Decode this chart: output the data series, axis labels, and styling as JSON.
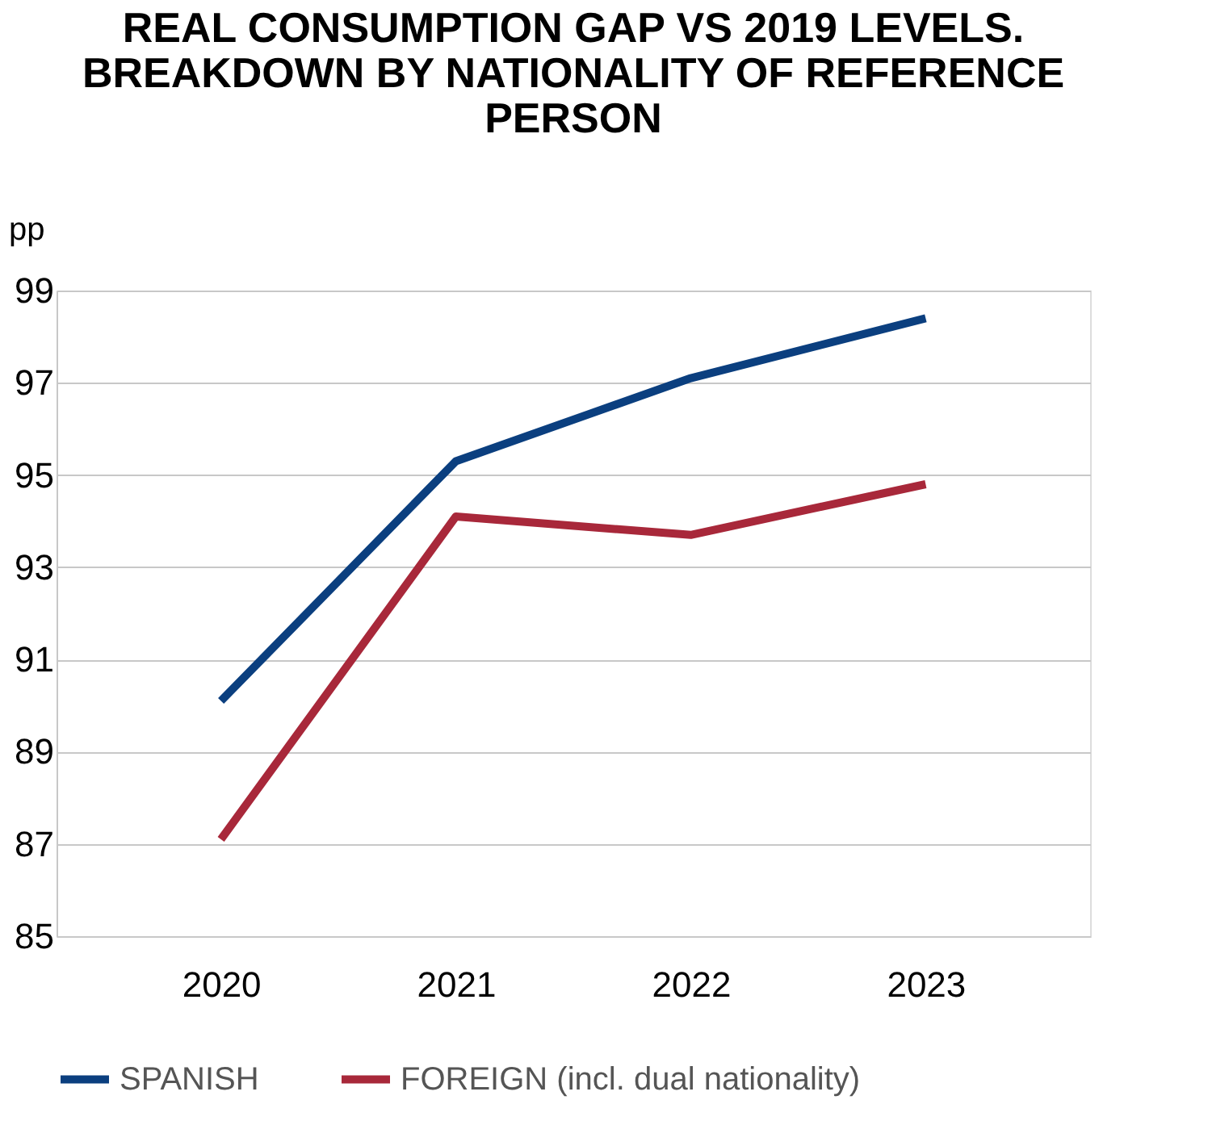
{
  "chart_data": {
    "type": "line",
    "title": "REAL CONSUMPTION GAP VS 2019 LEVELS. BREAKDOWN BY NATIONALITY OF REFERENCE PERSON",
    "ylabel": "pp",
    "categories": [
      "2020",
      "2021",
      "2022",
      "2023"
    ],
    "series": [
      {
        "name": "SPANISH",
        "color": "#0b3f7f",
        "values": [
          90.1,
          95.3,
          97.1,
          98.4
        ]
      },
      {
        "name": "FOREIGN (incl. dual nationality)",
        "color": "#a8283a",
        "values": [
          87.1,
          94.1,
          93.7,
          94.8
        ]
      }
    ],
    "ylim": [
      85,
      99
    ],
    "yticks": [
      85,
      87,
      89,
      91,
      93,
      95,
      97,
      99
    ],
    "grid": "y",
    "legend": "bottom",
    "marker": "none",
    "line_style": "solid"
  }
}
